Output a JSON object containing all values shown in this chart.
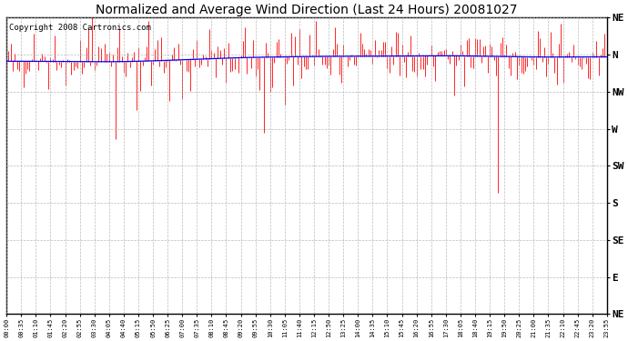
{
  "title": "Normalized and Average Wind Direction (Last 24 Hours) 20081027",
  "copyright_text": "Copyright 2008 Cartronics.com",
  "ytick_positions": [
    360,
    315,
    270,
    225,
    180,
    135,
    90,
    45,
    0
  ],
  "ytick_labels": [
    "NE",
    "N",
    "NW",
    "W",
    "SW",
    "S",
    "SE",
    "E",
    "NE"
  ],
  "ylim_min": 0,
  "ylim_max": 360,
  "xlim_min": 0,
  "xlim_max": 287,
  "background_color": "#ffffff",
  "plot_bg_color": "#ffffff",
  "grid_color": "#aaaaaa",
  "red_color": "#ff0000",
  "blue_color": "#0000ff",
  "n_points": 288,
  "title_fontsize": 10,
  "copyright_fontsize": 6.5,
  "xtick_fontsize": 5,
  "ytick_fontsize": 8
}
